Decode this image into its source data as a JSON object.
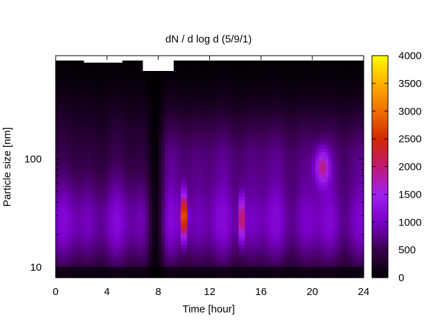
{
  "chart_data": {
    "type": "heatmap",
    "title": "dN / d log d (5/9/1)",
    "xlabel": "Time [hour]",
    "ylabel": "Particle size [nm]",
    "xlim": [
      0,
      24
    ],
    "ylim": [
      8,
      900
    ],
    "y_scale": "log",
    "x_ticks": [
      0,
      4,
      8,
      12,
      16,
      20,
      24
    ],
    "y_ticks": [
      10,
      100
    ],
    "colorbar": {
      "range": [
        0,
        4000
      ],
      "ticks": [
        0,
        500,
        1000,
        1500,
        2000,
        2500,
        3000,
        3500,
        4000
      ],
      "palette": [
        "#000000",
        "#3a0050",
        "#7a00c8",
        "#a020f0",
        "#c01870",
        "#d02a00",
        "#f07000",
        "#ffb000",
        "#ffff00"
      ]
    },
    "features": [
      {
        "label": "background band",
        "x_range": [
          0,
          24
        ],
        "y_range": [
          10,
          60
        ],
        "value": 1100
      },
      {
        "label": "dip",
        "x_range": [
          7.2,
          8.4
        ],
        "y_range": [
          8,
          900
        ],
        "value": 200
      },
      {
        "label": "hotspot",
        "x": 10.0,
        "y": 30,
        "value": 3500
      },
      {
        "label": "hotspot",
        "x": 14.5,
        "y": 28,
        "value": 2500
      },
      {
        "label": "hotspot",
        "x": 20.8,
        "y": 85,
        "value": 2100
      }
    ]
  }
}
